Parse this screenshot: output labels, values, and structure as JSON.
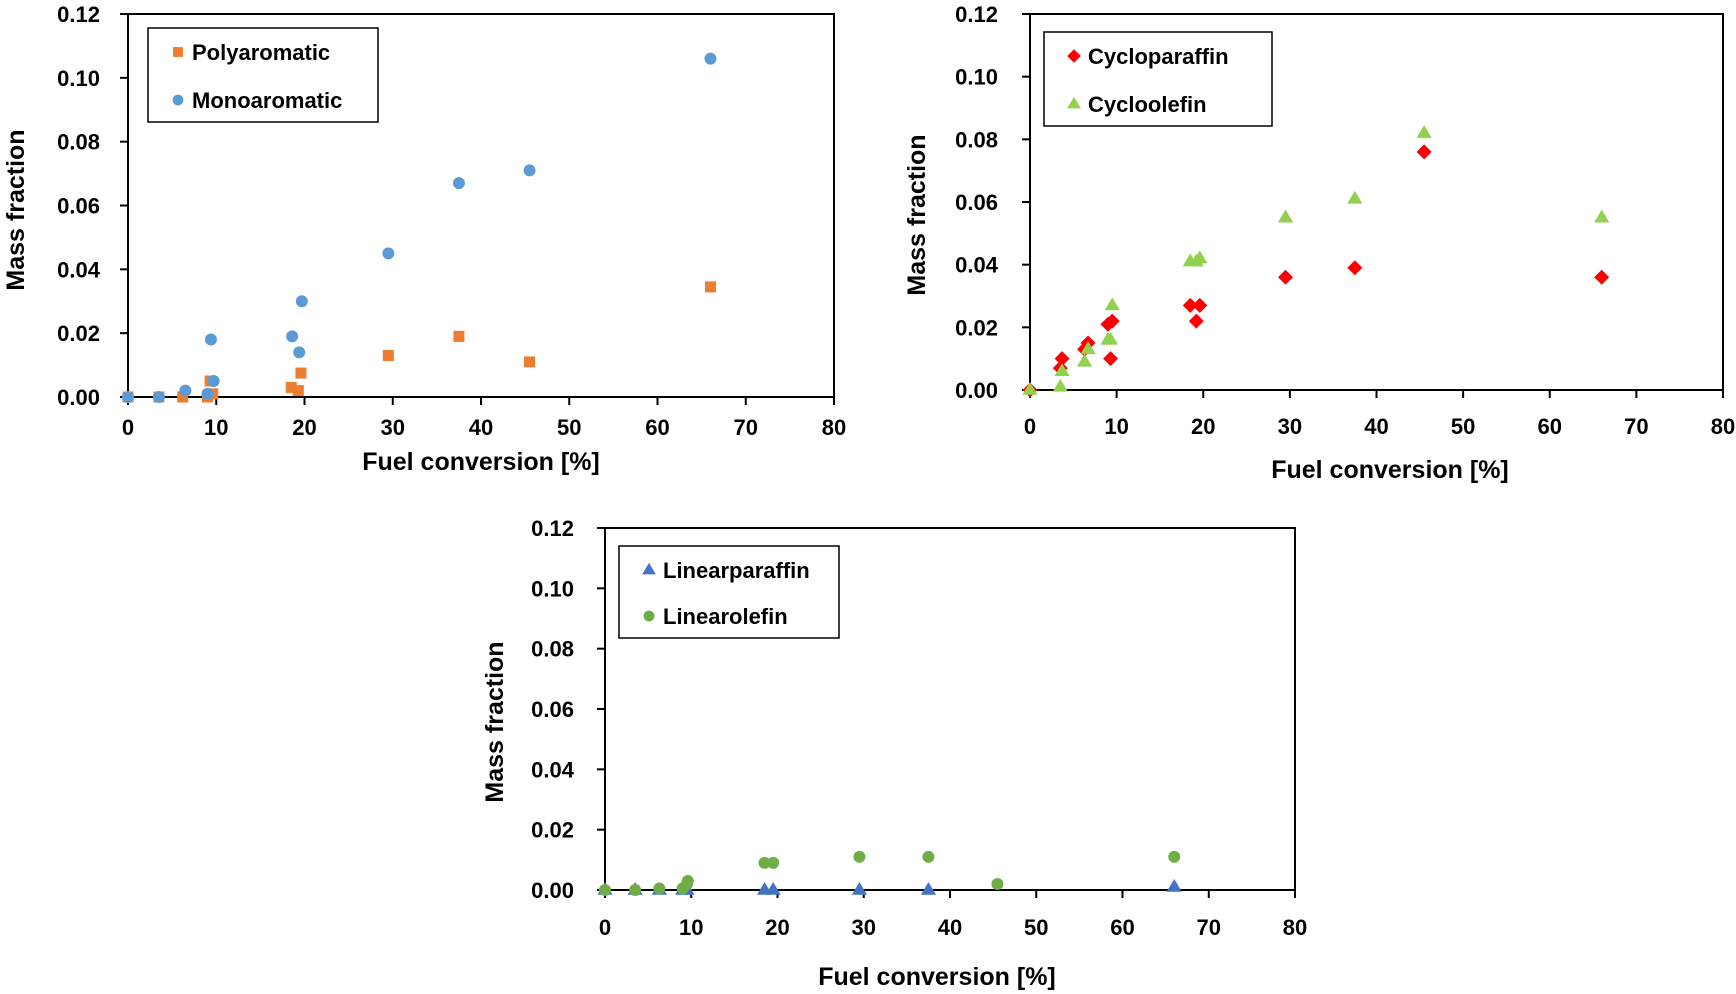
{
  "colors": {
    "polyaromatic": "#ED7D31",
    "monoaromatic": "#5B9BD5",
    "cycloparaffin": "#FF0000",
    "cycloolefin": "#92D050",
    "linearparaffin": "#4472C4",
    "linearolefin": "#70AD47"
  },
  "chart_data": [
    {
      "type": "scatter",
      "xlabel": "Fuel conversion [%]",
      "ylabel": "Mass fraction",
      "xlim": [
        0,
        80
      ],
      "ylim": [
        0,
        0.12
      ],
      "x_ticks": [
        "0",
        "10",
        "20",
        "30",
        "40",
        "50",
        "60",
        "70",
        "80"
      ],
      "y_ticks": [
        "0.00",
        "0.02",
        "0.04",
        "0.06",
        "0.08",
        "0.10",
        "0.12"
      ],
      "grid": false,
      "legend_position": "top-left",
      "series": [
        {
          "name": "Polyaromatic",
          "marker": "square",
          "color": "#ED7D31",
          "points": [
            [
              0,
              0.0
            ],
            [
              3.5,
              0.0
            ],
            [
              6.2,
              0.0
            ],
            [
              9.0,
              0.0
            ],
            [
              9.3,
              0.005
            ],
            [
              9.6,
              0.001
            ],
            [
              18.5,
              0.003
            ],
            [
              19.3,
              0.002
            ],
            [
              19.6,
              0.0075
            ],
            [
              29.5,
              0.013
            ],
            [
              37.5,
              0.019
            ],
            [
              45.5,
              0.011
            ],
            [
              66.0,
              0.0345
            ]
          ]
        },
        {
          "name": "Monoaromatic",
          "marker": "circle",
          "color": "#5B9BD5",
          "points": [
            [
              0,
              0.0
            ],
            [
              3.5,
              0.0
            ],
            [
              6.5,
              0.002
            ],
            [
              9.0,
              0.001
            ],
            [
              9.4,
              0.018
            ],
            [
              9.7,
              0.005
            ],
            [
              18.6,
              0.019
            ],
            [
              19.4,
              0.014
            ],
            [
              19.7,
              0.03
            ],
            [
              29.5,
              0.045
            ],
            [
              37.5,
              0.067
            ],
            [
              45.5,
              0.071
            ],
            [
              66.0,
              0.106
            ]
          ]
        }
      ]
    },
    {
      "type": "scatter",
      "xlabel": "Fuel conversion [%]",
      "ylabel": "Mass fraction",
      "xlim": [
        0,
        80
      ],
      "ylim": [
        0,
        0.12
      ],
      "x_ticks": [
        "0",
        "10",
        "20",
        "30",
        "40",
        "50",
        "60",
        "70",
        "80"
      ],
      "y_ticks": [
        "0.00",
        "0.02",
        "0.04",
        "0.06",
        "0.08",
        "0.10",
        "0.12"
      ],
      "grid": false,
      "legend_position": "top-left",
      "series": [
        {
          "name": "Cycloparaffin",
          "marker": "diamond",
          "color": "#FF0000",
          "points": [
            [
              0,
              0.0
            ],
            [
              3.5,
              0.007
            ],
            [
              3.7,
              0.01
            ],
            [
              6.3,
              0.013
            ],
            [
              6.7,
              0.015
            ],
            [
              9.0,
              0.021
            ],
            [
              9.3,
              0.01
            ],
            [
              9.5,
              0.022
            ],
            [
              18.5,
              0.027
            ],
            [
              19.2,
              0.022
            ],
            [
              19.6,
              0.027
            ],
            [
              29.5,
              0.036
            ],
            [
              37.5,
              0.039
            ],
            [
              45.5,
              0.076
            ],
            [
              66.0,
              0.036
            ]
          ]
        },
        {
          "name": "Cycloolefin",
          "marker": "triangle",
          "color": "#92D050",
          "points": [
            [
              0,
              0.0
            ],
            [
              3.5,
              0.001
            ],
            [
              3.7,
              0.006
            ],
            [
              6.3,
              0.009
            ],
            [
              6.7,
              0.013
            ],
            [
              9.0,
              0.016
            ],
            [
              9.3,
              0.016
            ],
            [
              9.5,
              0.027
            ],
            [
              18.5,
              0.041
            ],
            [
              19.2,
              0.041
            ],
            [
              19.6,
              0.042
            ],
            [
              29.5,
              0.055
            ],
            [
              37.5,
              0.061
            ],
            [
              45.5,
              0.082
            ],
            [
              66.0,
              0.055
            ]
          ]
        }
      ]
    },
    {
      "type": "scatter",
      "xlabel": "Fuel conversion [%]",
      "ylabel": "Mass fraction",
      "xlim": [
        0,
        80
      ],
      "ylim": [
        0,
        0.12
      ],
      "x_ticks": [
        "0",
        "10",
        "20",
        "30",
        "40",
        "50",
        "60",
        "70",
        "80"
      ],
      "y_ticks": [
        "0.00",
        "0.02",
        "0.04",
        "0.06",
        "0.08",
        "0.10",
        "0.12"
      ],
      "grid": false,
      "legend_position": "top-left",
      "series": [
        {
          "name": "Linearparaffin",
          "marker": "triangle",
          "color": "#4472C4",
          "points": [
            [
              0,
              0.0
            ],
            [
              3.5,
              0.0
            ],
            [
              6.3,
              0.0
            ],
            [
              9.0,
              0.0
            ],
            [
              9.5,
              0.0
            ],
            [
              18.5,
              0.0
            ],
            [
              19.5,
              0.0
            ],
            [
              29.5,
              0.0
            ],
            [
              37.5,
              0.0
            ],
            [
              66.0,
              0.001
            ]
          ]
        },
        {
          "name": "Linearolefin",
          "marker": "circle",
          "color": "#70AD47",
          "points": [
            [
              0,
              0.0
            ],
            [
              3.5,
              0.0
            ],
            [
              6.3,
              0.0005
            ],
            [
              9.0,
              0.0005
            ],
            [
              9.5,
              0.002
            ],
            [
              9.6,
              0.003
            ],
            [
              18.5,
              0.009
            ],
            [
              19.5,
              0.009
            ],
            [
              29.5,
              0.011
            ],
            [
              37.5,
              0.011
            ],
            [
              45.5,
              0.002
            ],
            [
              66.0,
              0.011
            ]
          ]
        }
      ]
    }
  ]
}
